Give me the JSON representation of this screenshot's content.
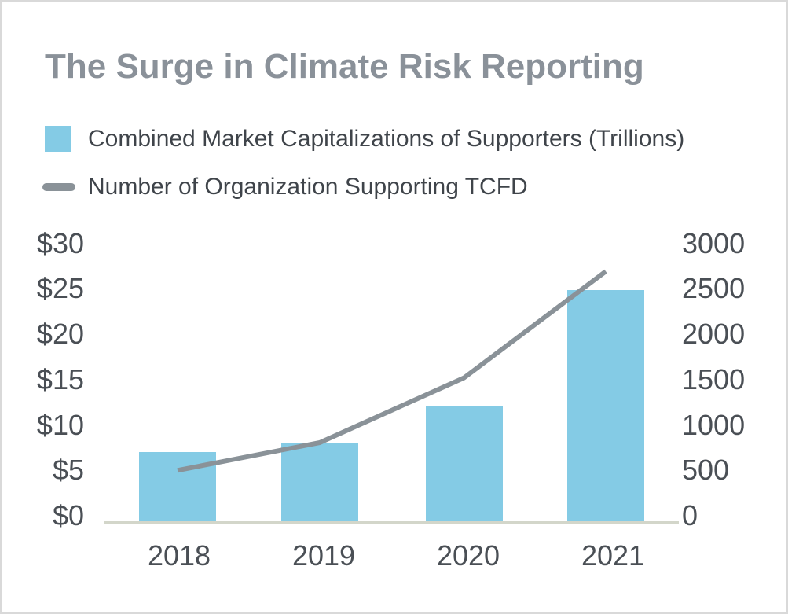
{
  "title": "The Surge in Climate Risk Reporting",
  "chart_data": {
    "type": "bar+line",
    "categories": [
      "2018",
      "2019",
      "2020",
      "2021"
    ],
    "series": [
      {
        "name": "Combined Market Capitalizations of Supporters (Trillions)",
        "type": "bar",
        "axis": "left",
        "values": [
          7.5,
          8.5,
          12.5,
          25
        ],
        "color": "#84CBE5"
      },
      {
        "name": "Number of Organization Supporting TCFD",
        "type": "line",
        "axis": "right",
        "values": [
          550,
          850,
          1550,
          2700
        ],
        "color": "#8A9298"
      }
    ],
    "left_axis": {
      "tick_labels": [
        "$0",
        "$5",
        "$10",
        "$15",
        "$20",
        "$25",
        "$30"
      ],
      "range": [
        0,
        30
      ]
    },
    "right_axis": {
      "tick_labels": [
        "0",
        "500",
        "1000",
        "1500",
        "2000",
        "2500",
        "3000"
      ],
      "range": [
        0,
        3000
      ]
    },
    "grid": false,
    "legend_position": "top-left"
  },
  "colors": {
    "bar": "#84CBE5",
    "line": "#8A9298",
    "title_text": "#8A9199",
    "legend_text": "#3F444A",
    "tick_text": "#4A4F55",
    "axis_line": "#D3D6CA",
    "card_border": "#D9D9D9",
    "background": "#FFFFFF"
  }
}
